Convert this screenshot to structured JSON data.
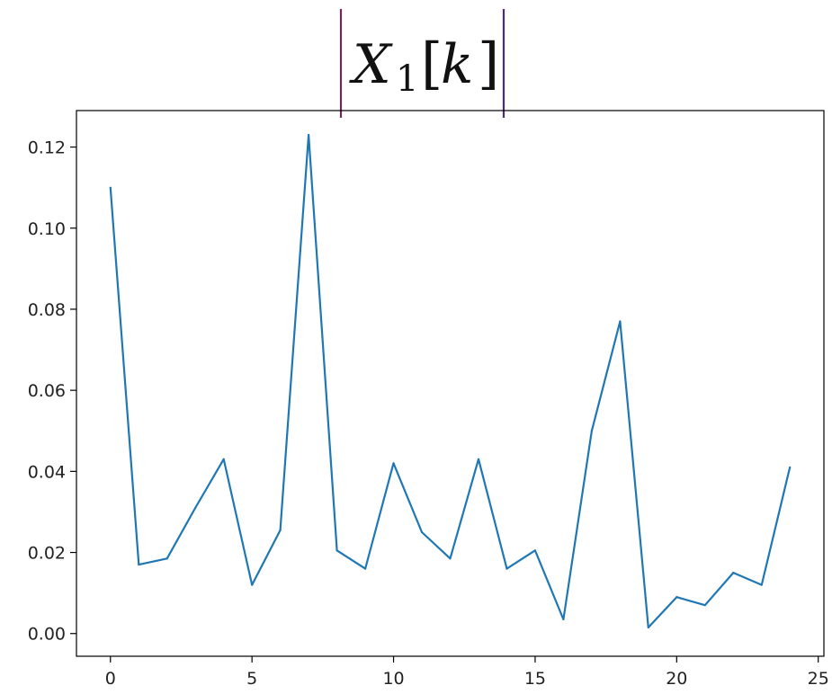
{
  "chart_data": {
    "type": "line",
    "title": {
      "symbol": "X",
      "subscript": "1",
      "open_bracket": "[",
      "index": "k",
      "close_bracket": "]"
    },
    "xlabel": "",
    "ylabel": "",
    "xlim": [
      -1.2,
      25.2
    ],
    "ylim": [
      -0.0056,
      0.129
    ],
    "xticks": [
      0,
      5,
      10,
      15,
      20,
      25
    ],
    "xtick_labels": [
      "0",
      "5",
      "10",
      "15",
      "20",
      "25"
    ],
    "yticks": [
      0.0,
      0.02,
      0.04,
      0.06,
      0.08,
      0.1,
      0.12
    ],
    "ytick_labels": [
      "0.00",
      "0.02",
      "0.04",
      "0.06",
      "0.08",
      "0.10",
      "0.12"
    ],
    "grid": false,
    "series": [
      {
        "color": "#1f77b4",
        "x": [
          0,
          1,
          2,
          3,
          4,
          5,
          6,
          7,
          8,
          9,
          10,
          11,
          12,
          13,
          14,
          15,
          16,
          17,
          18,
          19,
          20,
          21,
          22,
          23,
          24
        ],
        "y": [
          0.11,
          0.017,
          0.0185,
          0.031,
          0.043,
          0.012,
          0.0255,
          0.123,
          0.0205,
          0.016,
          0.042,
          0.025,
          0.0185,
          0.043,
          0.016,
          0.0205,
          0.0035,
          0.05,
          0.077,
          0.0015,
          0.009,
          0.007,
          0.015,
          0.012,
          0.041
        ]
      }
    ]
  }
}
